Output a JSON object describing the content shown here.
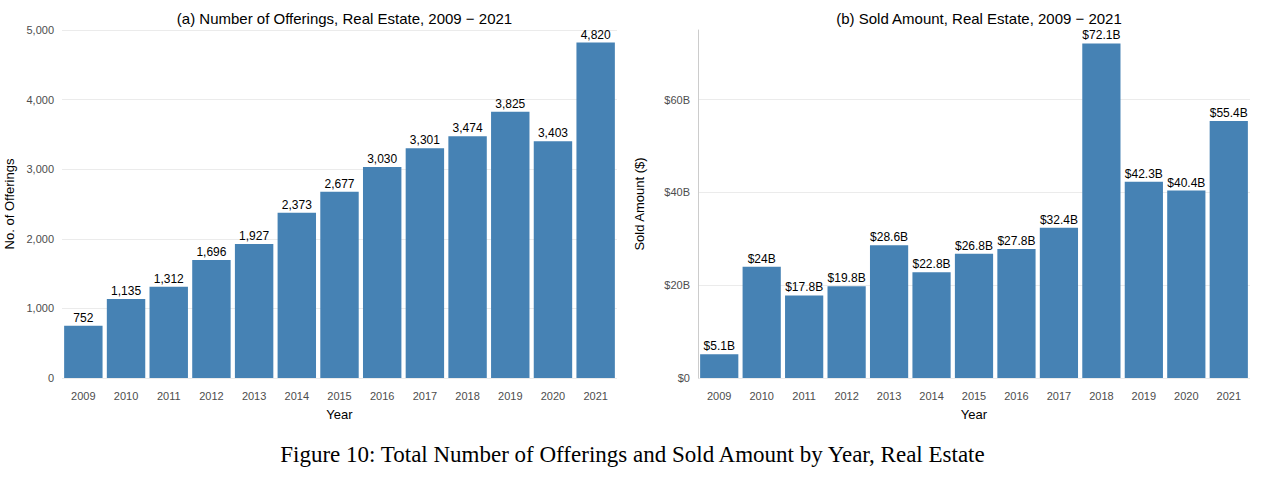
{
  "caption": "Figure 10: Total Number of Offerings and Sold Amount by Year, Real Estate",
  "chart_data": [
    {
      "type": "bar",
      "title": "(a) Number of Offerings, Real Estate, 2009 − 2021",
      "x_label": "Year",
      "y_label": "No. of Offerings",
      "categories": [
        "2009",
        "2010",
        "2011",
        "2012",
        "2013",
        "2014",
        "2015",
        "2016",
        "2017",
        "2018",
        "2019",
        "2020",
        "2021"
      ],
      "values": [
        752,
        1135,
        1312,
        1696,
        1927,
        2373,
        2677,
        3030,
        3301,
        3474,
        3825,
        3403,
        4820
      ],
      "value_labels": [
        "752",
        "1,135",
        "1,312",
        "1,696",
        "1,927",
        "2,373",
        "2,677",
        "3,030",
        "3,301",
        "3,474",
        "3,825",
        "3,403",
        "4,820"
      ],
      "color": "#4682b4",
      "ylim": [
        0,
        5000
      ],
      "yticks": [
        0,
        {
          "value": 1000,
          "label": "1,000"
        },
        {
          "value": 2000,
          "label": "2,000"
        },
        {
          "value": 3000,
          "label": "3,000"
        },
        {
          "value": 4000,
          "label": "4,000"
        },
        {
          "value": 5000,
          "label": "5,000"
        }
      ],
      "grid": true,
      "data_labels": true
    },
    {
      "type": "bar",
      "title": "(b) Sold Amount, Real Estate, 2009 − 2021",
      "x_label": "Year",
      "y_label": "Sold Amount ($)",
      "categories": [
        "2009",
        "2010",
        "2011",
        "2012",
        "2013",
        "2014",
        "2015",
        "2016",
        "2017",
        "2018",
        "2019",
        "2020",
        "2021"
      ],
      "values": [
        5100000000,
        24000000000,
        17800000000,
        19800000000,
        28600000000,
        22800000000,
        26800000000,
        27800000000,
        32400000000,
        72100000000,
        42300000000,
        40400000000,
        55400000000
      ],
      "value_labels": [
        "$5.1B",
        "$24B",
        "$17.8B",
        "$19.8B",
        "$28.6B",
        "$22.8B",
        "$26.8B",
        "$27.8B",
        "$32.4B",
        "$72.1B",
        "$42.3B",
        "$40.4B",
        "$55.4B"
      ],
      "color": "#4682b4",
      "ylim": [
        0,
        75000000000
      ],
      "yticks": [
        {
          "value": 0,
          "label": "$0"
        },
        {
          "value": 20000000000,
          "label": "$20B"
        },
        {
          "value": 40000000000,
          "label": "$40B"
        },
        {
          "value": 60000000000,
          "label": "$60B"
        }
      ],
      "grid": true,
      "data_labels": true
    }
  ]
}
